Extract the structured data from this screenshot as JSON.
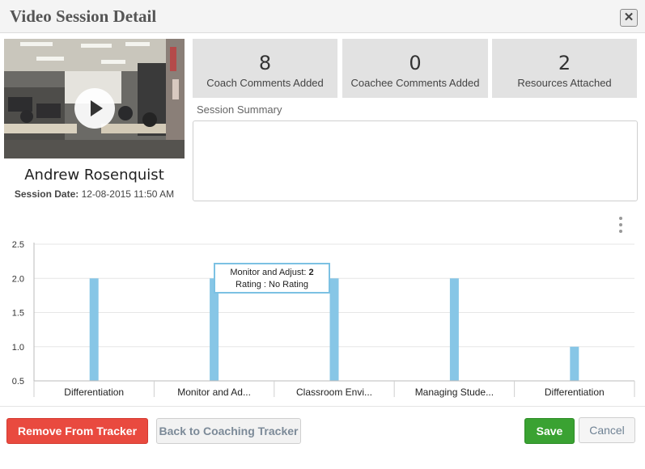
{
  "window": {
    "title": "Video Session Detail",
    "close_label": "✕"
  },
  "session": {
    "person_name": "Andrew Rosenquist",
    "date_label": "Session Date:",
    "date_value": "12-08-2015 11:50 AM"
  },
  "stats": [
    {
      "value": "8",
      "label": "Coach Comments Added"
    },
    {
      "value": "0",
      "label": "Coachee Comments Added"
    },
    {
      "value": "2",
      "label": "Resources Attached"
    }
  ],
  "summary": {
    "label": "Session Summary",
    "value": ""
  },
  "chart_data": {
    "type": "bar",
    "categories": [
      "Differentiation",
      "Monitor and Ad...",
      "Classroom Envi...",
      "Managing Stude...",
      "Differentiation"
    ],
    "values": [
      2,
      2,
      2,
      2,
      1
    ],
    "y_ticks": [
      "0.5",
      "1.0",
      "1.5",
      "2.0",
      "2.5"
    ],
    "ylim": [
      0.5,
      2.5
    ],
    "bar_color": "#87c6e6",
    "grid": true,
    "tooltip": {
      "label": "Monitor and Adjust:",
      "value": "2",
      "rating_label": "Rating :",
      "rating_value": "No Rating"
    }
  },
  "buttons": {
    "remove": "Remove From Tracker",
    "back": "Back to Coaching Tracker",
    "save": "Save",
    "cancel": "Cancel"
  },
  "colors": {
    "danger": "#e94a3f",
    "success": "#3aa232"
  }
}
